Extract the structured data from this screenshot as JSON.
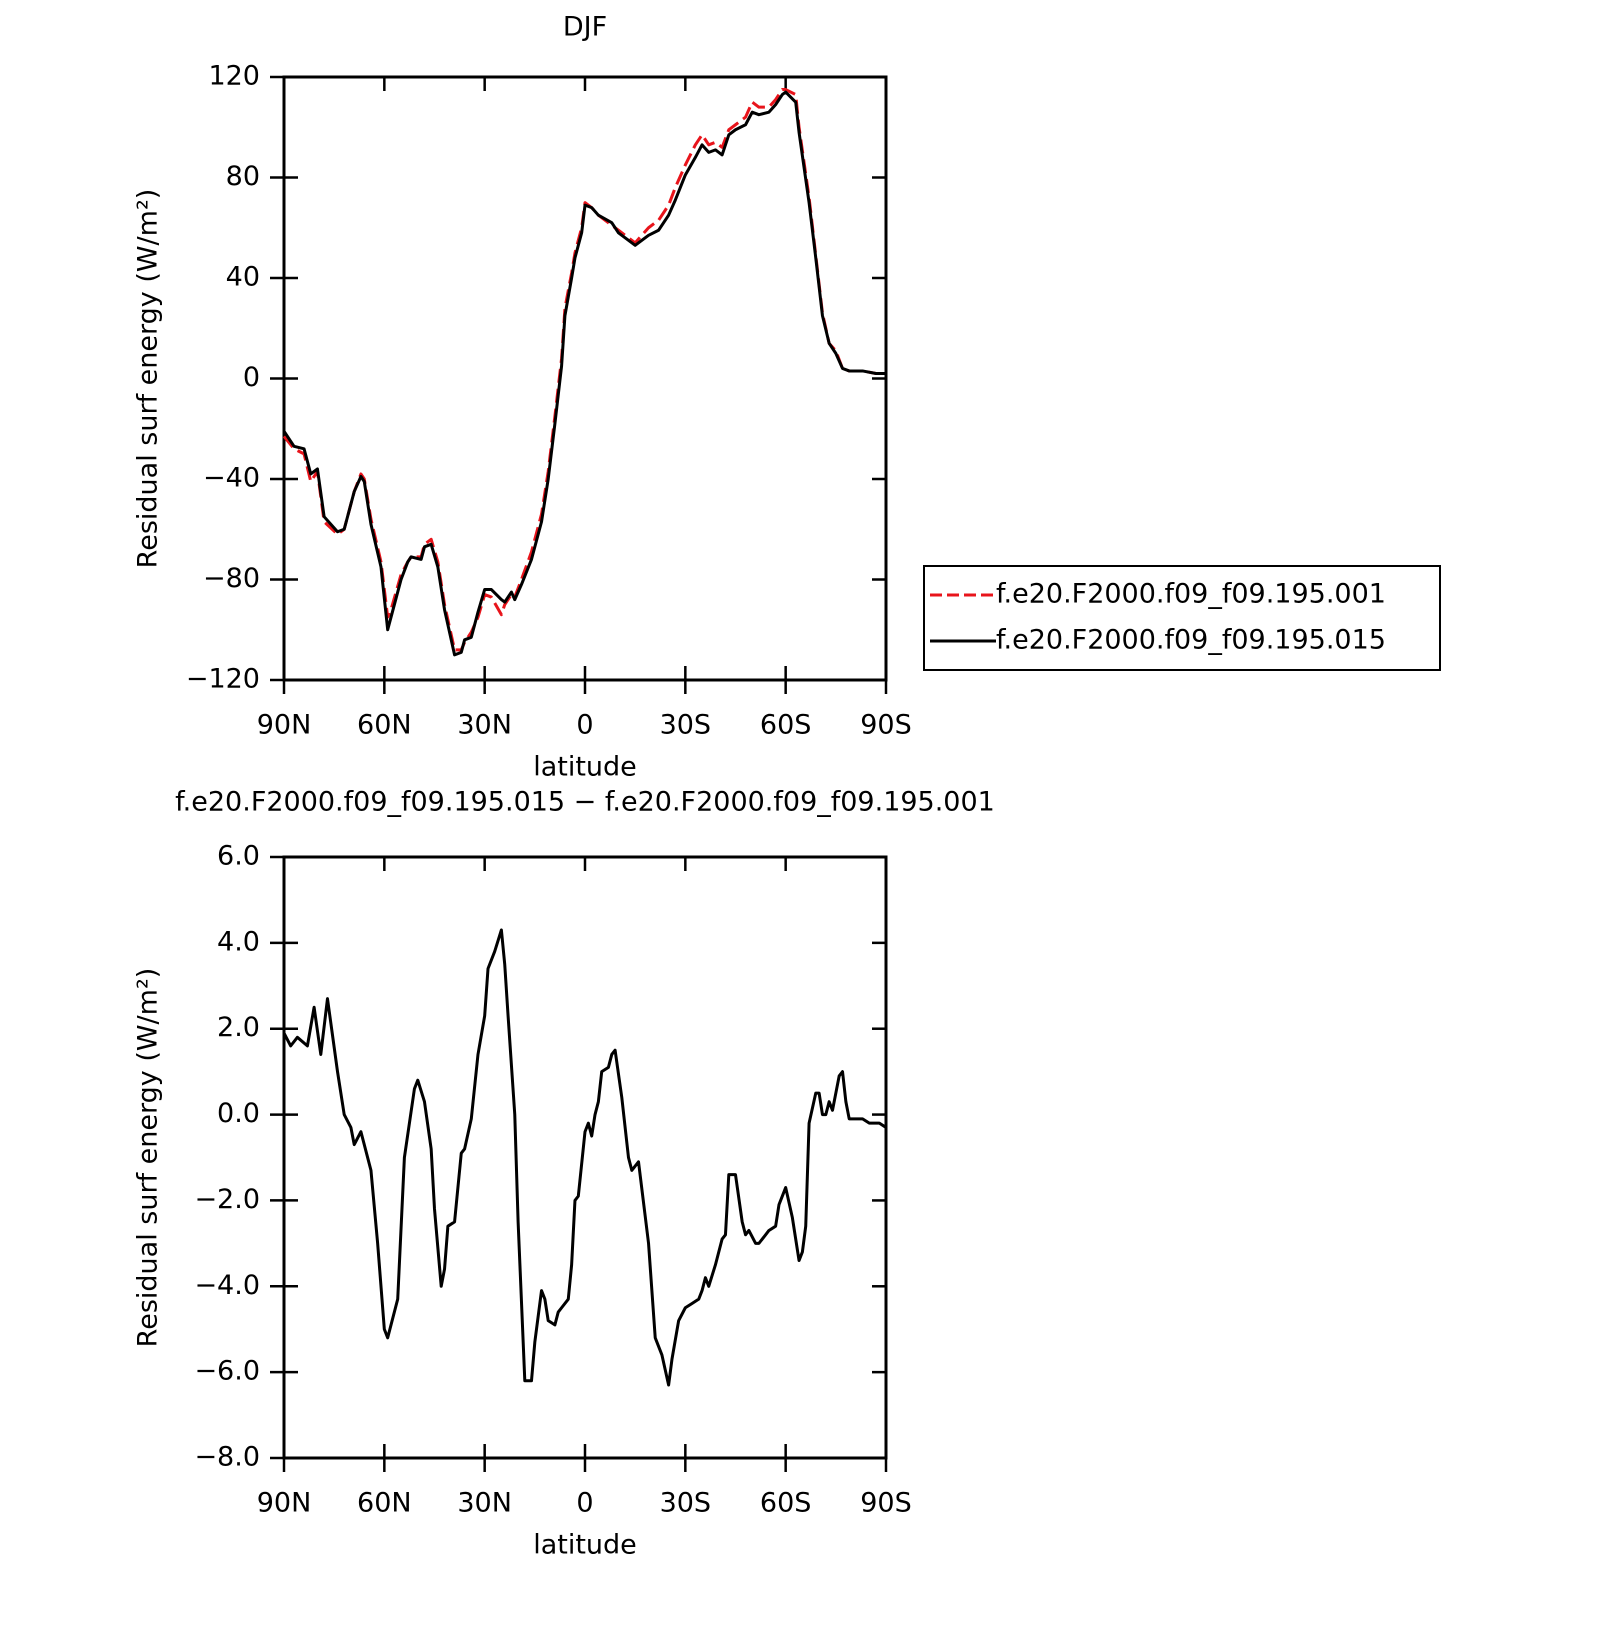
{
  "chart_data": [
    {
      "type": "line",
      "title": "DJF",
      "xlabel": "latitude",
      "ylabel": "Residual surf energy (W/m²)",
      "xlim": [
        90,
        -90
      ],
      "xticks": [
        {
          "value": 90,
          "label": "90N"
        },
        {
          "value": 60,
          "label": "60N"
        },
        {
          "value": 30,
          "label": "30N"
        },
        0,
        {
          "value": -30,
          "label": "30S"
        },
        {
          "value": -60,
          "label": "60S"
        },
        {
          "value": -90,
          "label": "90S"
        }
      ],
      "ylim": [
        -120,
        120
      ],
      "yticks": [
        {
          "value": -120,
          "label": "−120"
        },
        {
          "value": -80,
          "label": "−80"
        },
        {
          "value": -40,
          "label": "−40"
        },
        0,
        40,
        80,
        120
      ],
      "legend": "right",
      "x": [
        90,
        87,
        84,
        82,
        80,
        78,
        74,
        72,
        69,
        67,
        66,
        64,
        61,
        59,
        58,
        55,
        53,
        52,
        49,
        48,
        46,
        44,
        42,
        39,
        37,
        36,
        34,
        32,
        30,
        28,
        25,
        24,
        22,
        21,
        19,
        16,
        13,
        11,
        9,
        7,
        6,
        4,
        3,
        1,
        0,
        -2,
        -4,
        -8,
        -10,
        -13,
        -15,
        -17,
        -19,
        -22,
        -25,
        -27,
        -30,
        -33,
        -35,
        -37,
        -39,
        -41,
        -43,
        -45,
        -48,
        -50,
        -52,
        -55,
        -57,
        -59,
        -60,
        -63,
        -64,
        -67,
        -69,
        -71,
        -73,
        -75,
        -77,
        -79,
        -83,
        -87,
        -90
      ],
      "series": [
        {
          "name": "f.e20.F2000.f09_f09.195.001",
          "color": "#e8141b",
          "dash": true,
          "values": [
            -23,
            -28,
            -30,
            -41,
            -37,
            -57,
            -62,
            -60,
            -45,
            -38,
            -40,
            -56,
            -73,
            -95,
            -92,
            -78,
            -73,
            -71,
            -71,
            -66,
            -64,
            -73,
            -90,
            -108,
            -108,
            -105,
            -101,
            -95,
            -86,
            -87,
            -94,
            -90,
            -86,
            -87,
            -80,
            -69,
            -54,
            -37,
            -15,
            8,
            28,
            42,
            50,
            60,
            70,
            68,
            65,
            61,
            59,
            56,
            54,
            57,
            60,
            63,
            69,
            76,
            85,
            93,
            97,
            93,
            94,
            92,
            99,
            101,
            104,
            110,
            108,
            108,
            111,
            115,
            115,
            113,
            100,
            72,
            49,
            26,
            14,
            11,
            4,
            3,
            3,
            2,
            2
          ]
        },
        {
          "name": "f.e20.F2000.f09_f09.195.015",
          "color": "#000000",
          "dash": false,
          "values": [
            -21,
            -27,
            -28,
            -38,
            -36,
            -55,
            -61,
            -60,
            -45,
            -39,
            -41,
            -58,
            -75,
            -100,
            -95,
            -80,
            -73,
            -71,
            -72,
            -67,
            -66,
            -75,
            -92,
            -110,
            -109,
            -104,
            -103,
            -93,
            -84,
            -84,
            -88,
            -89,
            -85,
            -88,
            -82,
            -72,
            -57,
            -40,
            -18,
            5,
            25,
            40,
            48,
            58,
            69,
            68,
            65,
            62,
            58,
            55,
            53,
            55,
            57,
            59,
            65,
            71,
            81,
            88,
            93,
            90,
            91,
            89,
            97,
            99,
            101,
            106,
            105,
            106,
            109,
            113,
            114,
            110,
            98,
            70,
            48,
            25,
            14,
            10,
            4,
            3,
            3,
            2,
            2
          ]
        }
      ]
    },
    {
      "type": "line",
      "title": "f.e20.F2000.f09_f09.195.015 − f.e20.F2000.f09_f09.195.001",
      "xlabel": "latitude",
      "ylabel": "Residual surf energy (W/m²)",
      "xlim": [
        90,
        -90
      ],
      "xticks": [
        {
          "value": 90,
          "label": "90N"
        },
        {
          "value": 60,
          "label": "60N"
        },
        {
          "value": 30,
          "label": "30N"
        },
        0,
        {
          "value": -30,
          "label": "30S"
        },
        {
          "value": -60,
          "label": "60S"
        },
        {
          "value": -90,
          "label": "90S"
        }
      ],
      "ylim": [
        -8,
        6
      ],
      "yticks": [
        {
          "value": -8,
          "label": "−8.0"
        },
        {
          "value": -6,
          "label": "−6.0"
        },
        {
          "value": -4,
          "label": "−4.0"
        },
        {
          "value": -2,
          "label": "−2.0"
        },
        {
          "value": 0,
          "label": "0.0"
        },
        {
          "value": 2,
          "label": "2.0"
        },
        {
          "value": 4,
          "label": "4.0"
        },
        {
          "value": 6,
          "label": "6.0"
        }
      ],
      "x": [
        90,
        88,
        86,
        83,
        81,
        79,
        77,
        74,
        72,
        70,
        69,
        67,
        66,
        64,
        62,
        60,
        59,
        56,
        54,
        51,
        50,
        48,
        46,
        45,
        43,
        42,
        41,
        39,
        37,
        36,
        34,
        32,
        30,
        29,
        27,
        25,
        24,
        23,
        21,
        20,
        18,
        16,
        15,
        13,
        12,
        11,
        9,
        8,
        7,
        5,
        4,
        3,
        2,
        0,
        -1,
        -2,
        -3,
        -4,
        -5,
        -7,
        -8,
        -9,
        -11,
        -13,
        -14,
        -15,
        -16,
        -19,
        -21,
        -23,
        -25,
        -26,
        -28,
        -30,
        -32,
        -34,
        -35,
        -36,
        -37,
        -39,
        -41,
        -42,
        -43,
        -45,
        -47,
        -48,
        -49,
        -51,
        -52,
        -54,
        -55,
        -57,
        -58,
        -60,
        -62,
        -64,
        -65,
        -66,
        -67,
        -69,
        -70,
        -71,
        -72,
        -73,
        -74,
        -75,
        -76,
        -77,
        -78,
        -79,
        -82,
        -83,
        -85,
        -88,
        -90
      ],
      "series": [
        {
          "color": "#000000",
          "dash": false,
          "values": [
            1.9,
            1.6,
            1.8,
            1.6,
            2.5,
            1.4,
            2.7,
            1.0,
            0.0,
            -0.3,
            -0.7,
            -0.4,
            -0.7,
            -1.3,
            -3.0,
            -5.0,
            -5.2,
            -4.3,
            -1.0,
            0.6,
            0.8,
            0.3,
            -0.8,
            -2.2,
            -4.0,
            -3.6,
            -2.6,
            -2.5,
            -0.9,
            -0.8,
            -0.1,
            1.4,
            2.3,
            3.4,
            3.8,
            4.3,
            3.5,
            2.3,
            0.0,
            -2.5,
            -6.2,
            -6.2,
            -5.3,
            -4.1,
            -4.3,
            -4.8,
            -4.9,
            -4.6,
            -4.5,
            -4.3,
            -3.5,
            -2.0,
            -1.9,
            -0.4,
            -0.2,
            -0.5,
            0.0,
            0.3,
            1.0,
            1.1,
            1.4,
            1.5,
            0.4,
            -1.0,
            -1.3,
            -1.2,
            -1.1,
            -3.0,
            -5.2,
            -5.6,
            -6.3,
            -5.7,
            -4.8,
            -4.5,
            -4.4,
            -4.3,
            -4.1,
            -3.8,
            -4.0,
            -3.5,
            -2.9,
            -2.8,
            -1.4,
            -1.4,
            -2.5,
            -2.8,
            -2.7,
            -3.0,
            -3.0,
            -2.8,
            -2.7,
            -2.6,
            -2.1,
            -1.7,
            -2.4,
            -3.4,
            -3.2,
            -2.6,
            -0.2,
            0.5,
            0.5,
            0.0,
            0.0,
            0.3,
            0.1,
            0.5,
            0.9,
            1.0,
            0.3,
            -0.1,
            -0.1,
            -0.1,
            -0.2,
            -0.2,
            -0.3
          ]
        }
      ]
    }
  ]
}
